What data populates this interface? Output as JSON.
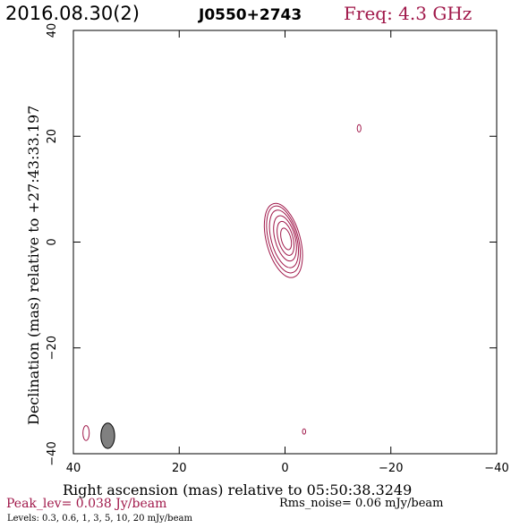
{
  "header": {
    "date": "2016.08.30(2)",
    "source": "J0550+2743",
    "freq": "Freq: 4.3 GHz"
  },
  "footer": {
    "peak": "Peak_lev=  0.038 Jy/beam",
    "rms": "Rms_noise= 0.06 mJy/beam",
    "levels": "Levels: 0.3, 0.6,    1,    3,    5,   10,   20 mJy/beam"
  },
  "colors": {
    "contour": "#a0184a",
    "beam_fill": "#808080",
    "axis": "#000000"
  },
  "chart_data": {
    "type": "contour",
    "xlabel": "Right ascension (mas) relative to 05:50:38.3249",
    "ylabel": "Declination (mas) relative to +27:43:33.197",
    "xlim": [
      40,
      -40
    ],
    "ylim": [
      -40,
      40
    ],
    "xticks": [
      "40",
      "20",
      "0",
      "−20",
      "−40"
    ],
    "yticks": [
      "−40",
      "−20",
      "0",
      "20",
      "40"
    ],
    "xtick_values": [
      40,
      20,
      0,
      -20,
      -40
    ],
    "ytick_values": [
      -40,
      -20,
      0,
      20,
      40
    ],
    "levels_mJy": [
      0.3,
      0.6,
      1,
      3,
      5,
      10,
      20
    ],
    "peak_Jy_per_beam": 0.038,
    "rms_mJy_per_beam": 0.06,
    "main_component": {
      "center": [
        0.3,
        0.3
      ],
      "pa_deg": 15,
      "contours": [
        {
          "level": 0.3,
          "cx": 0.3,
          "cy": 0.3,
          "rx": 3.2,
          "ry": 7.2
        },
        {
          "level": 0.6,
          "cx": 0.3,
          "cy": 0.5,
          "rx": 2.8,
          "ry": 6.5
        },
        {
          "level": 1,
          "cx": 0.2,
          "cy": 0.6,
          "rx": 2.4,
          "ry": 5.6
        },
        {
          "level": 3,
          "cx": 0.0,
          "cy": 0.7,
          "rx": 1.9,
          "ry": 4.4
        },
        {
          "level": 5,
          "cx": -0.1,
          "cy": 0.7,
          "rx": 1.4,
          "ry": 3.3
        },
        {
          "level": 10,
          "cx": -0.2,
          "cy": 0.6,
          "rx": 0.9,
          "ry": 2.1
        }
      ]
    },
    "noise_blobs": [
      {
        "cx": -14.0,
        "cy": 21.5,
        "rx": 0.35,
        "ry": 0.7
      },
      {
        "cx": -3.6,
        "cy": -35.8,
        "rx": 0.3,
        "ry": 0.5
      },
      {
        "cx": 37.6,
        "cy": -36.1,
        "rx": 0.6,
        "ry": 1.4
      }
    ],
    "beam": {
      "cx": 33.5,
      "cy": -36.6,
      "rx": 1.3,
      "ry": 2.4
    }
  }
}
